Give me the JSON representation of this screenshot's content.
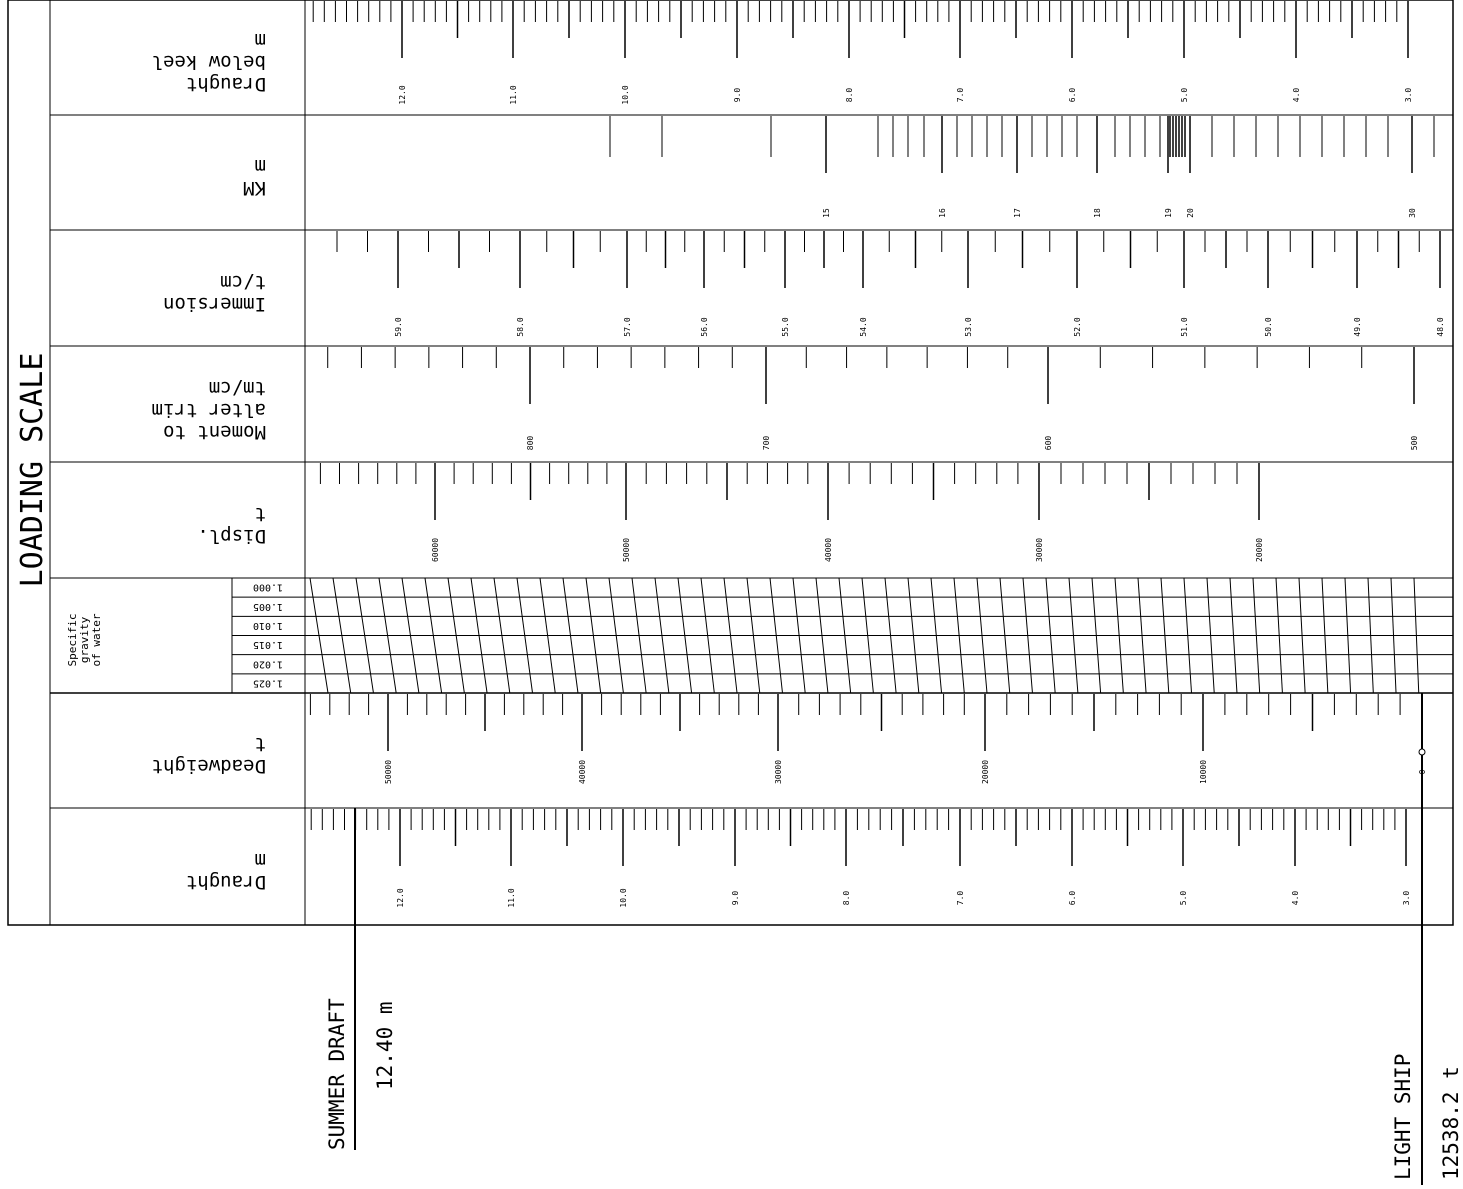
{
  "title": "LOADING SCALE",
  "scales": [
    {
      "key": "draught_keel",
      "name_lines": [
        "Draught",
        "below keel",
        "m"
      ],
      "labels": [
        "12.0",
        "11.0",
        "10.0",
        "9.0",
        "8.0",
        "7.0",
        "6.0",
        "5.0",
        "4.0",
        "3.0"
      ]
    },
    {
      "key": "km",
      "name_lines": [
        "KM",
        "m"
      ],
      "labels": [
        "15",
        "16",
        "17",
        "18",
        "19",
        "20",
        "30"
      ]
    },
    {
      "key": "immersion",
      "name_lines": [
        "Immersion",
        "t/cm"
      ],
      "labels": [
        "59.0",
        "58.0",
        "57.0",
        "56.0",
        "55.0",
        "54.0",
        "53.0",
        "52.0",
        "51.0",
        "50.0",
        "49.0",
        "48.0"
      ]
    },
    {
      "key": "mct",
      "name_lines": [
        "Moment to",
        "alter trim",
        "tm/cm"
      ],
      "labels": [
        "800",
        "700",
        "600",
        "500"
      ]
    },
    {
      "key": "displ",
      "name_lines": [
        "Displ.",
        "t"
      ],
      "labels": [
        "60000",
        "50000",
        "40000",
        "30000",
        "20000"
      ]
    },
    {
      "key": "deadweight",
      "name_lines": [
        "Deadweight",
        "t"
      ],
      "labels": [
        "50000",
        "40000",
        "30000",
        "20000",
        "10000",
        "0"
      ]
    },
    {
      "key": "draught",
      "name_lines": [
        "Draught",
        "m"
      ],
      "labels": [
        "12.0",
        "11.0",
        "10.0",
        "9.0",
        "8.0",
        "7.0",
        "6.0",
        "5.0",
        "4.0",
        "3.0"
      ]
    }
  ],
  "specific_gravity": {
    "title_lines": [
      "Specific",
      "gravity",
      "of water"
    ],
    "values": [
      "1.000",
      "1.005",
      "1.010",
      "1.015",
      "1.020",
      "1.025"
    ]
  },
  "summer_draft": {
    "label": "SUMMER DRAFT",
    "value": "12.40 m"
  },
  "light_ship": {
    "label": "LIGHT SHIP",
    "value": "12538.2 t"
  }
}
